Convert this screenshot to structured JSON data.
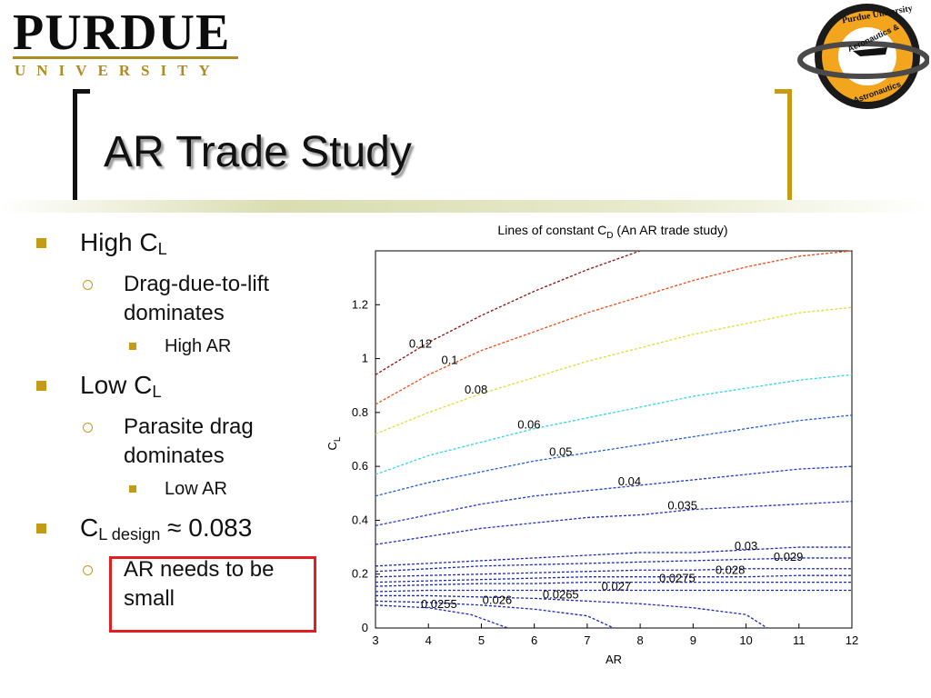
{
  "header": {
    "purdue_wordmark": "PURDUE",
    "university_wordmark": "UNIVERSITY",
    "seal_top_text": "Purdue University",
    "seal_mid_text": "Aeronautics &",
    "seal_bottom_text": "Astronautics"
  },
  "slide": {
    "title": "AR Trade Study"
  },
  "bullets": {
    "high_cl": {
      "main": "C",
      "sub": "L",
      "prefix": "High "
    },
    "high_cl_sub1": "Drag-due-to-lift dominates",
    "high_cl_sub2": "High AR",
    "low_cl": {
      "main": "C",
      "sub": "L",
      "prefix": "Low "
    },
    "low_cl_sub1": "Parasite drag dominates",
    "low_cl_sub2": "Low AR",
    "cl_design": {
      "main": "C",
      "sub": "L design",
      "suffix": " ≈ 0.083"
    },
    "cl_design_sub1": "AR needs to be small"
  },
  "colors": {
    "accent_gold": "#c59a17",
    "highlight_red": "#e01e24"
  },
  "chart_data": {
    "type": "contour",
    "title": "Lines of constant C",
    "title_sub": "D",
    "title_suffix": " (An AR trade study)",
    "xlabel": "AR",
    "ylabel": "C",
    "ylabel_sub": "L",
    "xlim": [
      3,
      12
    ],
    "ylim": [
      0,
      1.4
    ],
    "xticks": [
      3,
      4,
      5,
      6,
      7,
      8,
      9,
      10,
      11,
      12
    ],
    "yticks": [
      0,
      0.2,
      0.4,
      0.6,
      0.8,
      1,
      1.2
    ],
    "ytick_labels": [
      "0",
      "0.2",
      "0.4",
      "0.6",
      "0.8",
      "1",
      "1.2"
    ],
    "levels": [
      {
        "label": "0.12",
        "color": "#8b0f0f",
        "pts": [
          [
            3,
            0.94
          ],
          [
            4,
            1.06
          ],
          [
            5,
            1.16
          ],
          [
            6,
            1.25
          ],
          [
            7,
            1.33
          ],
          [
            8,
            1.4
          ]
        ],
        "lx": 3.85,
        "ly": 1.04
      },
      {
        "label": "0.1",
        "color": "#ee4a12",
        "pts": [
          [
            3,
            0.83
          ],
          [
            4,
            0.94
          ],
          [
            5,
            1.03
          ],
          [
            6,
            1.1
          ],
          [
            7,
            1.17
          ],
          [
            8,
            1.23
          ],
          [
            9,
            1.29
          ],
          [
            10,
            1.34
          ],
          [
            11,
            1.38
          ],
          [
            12,
            1.41
          ]
        ],
        "lx": 4.4,
        "ly": 0.98
      },
      {
        "label": "0.08",
        "color": "#d8e038",
        "pts": [
          [
            3,
            0.72
          ],
          [
            4,
            0.8
          ],
          [
            5,
            0.87
          ],
          [
            6,
            0.93
          ],
          [
            7,
            0.99
          ],
          [
            8,
            1.04
          ],
          [
            9,
            1.09
          ],
          [
            10,
            1.13
          ],
          [
            11,
            1.17
          ],
          [
            12,
            1.19
          ]
        ],
        "lx": 4.9,
        "ly": 0.87
      },
      {
        "label": "0.06",
        "color": "#34d5e8",
        "pts": [
          [
            3,
            0.57
          ],
          [
            4,
            0.64
          ],
          [
            5,
            0.69
          ],
          [
            6,
            0.74
          ],
          [
            7,
            0.78
          ],
          [
            8,
            0.82
          ],
          [
            9,
            0.86
          ],
          [
            10,
            0.89
          ],
          [
            11,
            0.92
          ],
          [
            12,
            0.94
          ]
        ],
        "lx": 5.9,
        "ly": 0.74
      },
      {
        "label": "0.05",
        "color": "#1e5edb",
        "pts": [
          [
            3,
            0.49
          ],
          [
            4,
            0.54
          ],
          [
            5,
            0.58
          ],
          [
            6,
            0.62
          ],
          [
            7,
            0.65
          ],
          [
            8,
            0.68
          ],
          [
            9,
            0.71
          ],
          [
            10,
            0.74
          ],
          [
            11,
            0.77
          ],
          [
            12,
            0.79
          ]
        ],
        "lx": 6.5,
        "ly": 0.64
      },
      {
        "label": "0.04",
        "color": "#1f39cc",
        "pts": [
          [
            3,
            0.38
          ],
          [
            4,
            0.42
          ],
          [
            5,
            0.46
          ],
          [
            6,
            0.49
          ],
          [
            7,
            0.51
          ],
          [
            8,
            0.53
          ],
          [
            9,
            0.55
          ],
          [
            10,
            0.57
          ],
          [
            11,
            0.59
          ],
          [
            12,
            0.6
          ]
        ],
        "lx": 7.8,
        "ly": 0.53
      },
      {
        "label": "0.035",
        "color": "#1f2fc2",
        "pts": [
          [
            3,
            0.31
          ],
          [
            4,
            0.34
          ],
          [
            5,
            0.37
          ],
          [
            6,
            0.39
          ],
          [
            7,
            0.41
          ],
          [
            8,
            0.42
          ],
          [
            9,
            0.44
          ],
          [
            10,
            0.45
          ],
          [
            11,
            0.46
          ],
          [
            12,
            0.47
          ]
        ],
        "lx": 8.8,
        "ly": 0.44
      },
      {
        "label": "0.03",
        "color": "#1b28b5",
        "pts": [
          [
            3,
            0.23
          ],
          [
            4,
            0.24
          ],
          [
            5,
            0.25
          ],
          [
            6,
            0.26
          ],
          [
            7,
            0.27
          ],
          [
            8,
            0.28
          ],
          [
            9,
            0.28
          ],
          [
            10,
            0.29
          ],
          [
            11,
            0.3
          ],
          [
            12,
            0.3
          ]
        ],
        "lx": 10.0,
        "ly": 0.29
      },
      {
        "label": "0.029",
        "color": "#1b28b5",
        "pts": [
          [
            3,
            0.21
          ],
          [
            4,
            0.22
          ],
          [
            5,
            0.23
          ],
          [
            6,
            0.235
          ],
          [
            7,
            0.24
          ],
          [
            8,
            0.245
          ],
          [
            9,
            0.25
          ],
          [
            10,
            0.255
          ],
          [
            11,
            0.26
          ],
          [
            12,
            0.26
          ]
        ],
        "lx": 10.8,
        "ly": 0.25
      },
      {
        "label": "0.028",
        "color": "#1b28b5",
        "pts": [
          [
            3,
            0.19
          ],
          [
            4,
            0.195
          ],
          [
            5,
            0.2
          ],
          [
            6,
            0.205
          ],
          [
            7,
            0.21
          ],
          [
            8,
            0.215
          ],
          [
            9,
            0.215
          ],
          [
            10,
            0.22
          ],
          [
            11,
            0.22
          ],
          [
            12,
            0.22
          ]
        ],
        "lx": 9.7,
        "ly": 0.2
      },
      {
        "label": "0.0275",
        "color": "#1b28b5",
        "pts": [
          [
            3,
            0.17
          ],
          [
            4,
            0.175
          ],
          [
            5,
            0.18
          ],
          [
            6,
            0.185
          ],
          [
            7,
            0.19
          ],
          [
            8,
            0.19
          ],
          [
            9,
            0.19
          ],
          [
            10,
            0.19
          ],
          [
            11,
            0.195
          ],
          [
            12,
            0.195
          ]
        ],
        "lx": 8.7,
        "ly": 0.17
      },
      {
        "label": "0.027",
        "color": "#1b28b5",
        "pts": [
          [
            3,
            0.155
          ],
          [
            4,
            0.16
          ],
          [
            5,
            0.165
          ],
          [
            6,
            0.165
          ],
          [
            7,
            0.17
          ],
          [
            8,
            0.17
          ],
          [
            9,
            0.17
          ],
          [
            10,
            0.17
          ],
          [
            11,
            0.17
          ],
          [
            12,
            0.17
          ]
        ],
        "lx": 7.55,
        "ly": 0.14
      },
      {
        "label": "0.0265",
        "color": "#1b28b5",
        "pts": [
          [
            3,
            0.135
          ],
          [
            4,
            0.14
          ],
          [
            5,
            0.14
          ],
          [
            6,
            0.14
          ],
          [
            7,
            0.14
          ],
          [
            8,
            0.14
          ],
          [
            9,
            0.14
          ],
          [
            10,
            0.14
          ],
          [
            11,
            0.14
          ],
          [
            12,
            0.14
          ]
        ],
        "lx": 6.5,
        "ly": 0.11
      },
      {
        "label": "0.026",
        "color": "#1b28b5",
        "pts": [
          [
            3,
            0.12
          ],
          [
            4,
            0.12
          ],
          [
            5,
            0.115
          ],
          [
            6,
            0.11
          ],
          [
            7,
            0.1
          ],
          [
            8,
            0.09
          ],
          [
            9,
            0.075
          ],
          [
            10,
            0.05
          ],
          [
            10.4,
            0.0
          ]
        ],
        "lx": 5.3,
        "ly": 0.09
      },
      {
        "label": "0.0255",
        "color": "#1b28b5",
        "pts": [
          [
            3,
            0.1
          ],
          [
            4,
            0.095
          ],
          [
            5,
            0.085
          ],
          [
            6,
            0.07
          ],
          [
            7,
            0.045
          ],
          [
            7.5,
            0.0
          ]
        ],
        "lx": 4.2,
        "ly": 0.075
      },
      {
        "label": "",
        "color": "#1b28b5",
        "pts": [
          [
            3,
            0.085
          ],
          [
            4,
            0.075
          ],
          [
            4.8,
            0.05
          ],
          [
            5.5,
            0.0
          ]
        ],
        "lx": 0,
        "ly": 0
      }
    ]
  }
}
